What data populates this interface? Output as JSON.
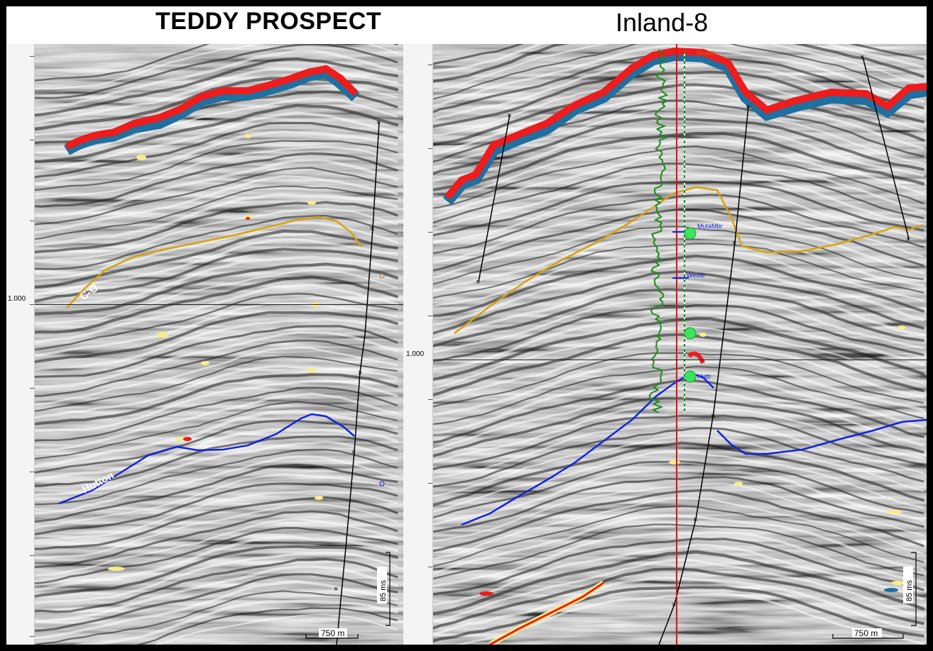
{
  "panels": {
    "left": {
      "title": "TEDDY PROSPECT",
      "time_label": "1.000",
      "horizon_upper": "C-O",
      "horizon_lower": "Hutton",
      "scale_vertical": "85 ms",
      "scale_horizontal": "750 m"
    },
    "right": {
      "title": "Inland-8",
      "time_label": "1.000",
      "well_tops": [
        "DraMb",
        "MutaMbr",
        "Westb",
        "Hutb"
      ],
      "scale_vertical": "85 ms",
      "scale_horizontal": "750 m"
    }
  },
  "colors": {
    "high_amp_red": "#ee1c1c",
    "low_amp_blue": "#1f6fa0",
    "soft_yellow": "#f5ee8c",
    "horizon_orange": "#d8a20c",
    "horizon_blue": "#1224d8",
    "well_log_green": "#1f8a1f",
    "well_path_red": "#e01010",
    "marker_green": "#39e65a",
    "fault_black": "#000000"
  }
}
